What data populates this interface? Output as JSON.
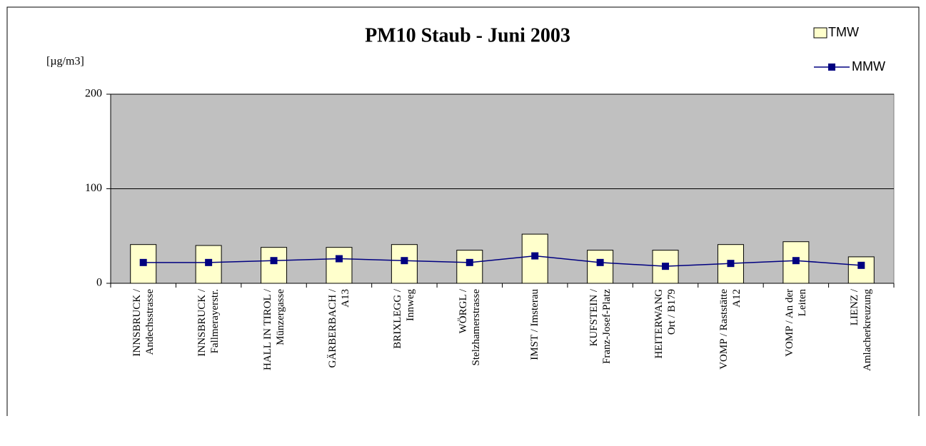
{
  "chart_data": {
    "type": "bar-line",
    "title": "PM10 Staub - Juni 2003",
    "y_label": "[µg/m3]",
    "categories": [
      "INNSBRUCK /\nAndechsstrasse",
      "INNSBRUCK /\nFallmerayerstr.",
      "HALL IN TIROL /\nMünzergasse",
      "GÄRBERBACH /\nA13",
      "BRIXLEGG /\nInnweg",
      "WÖRGL /\nStelzhamerstrasse",
      "IMST / Imsterau",
      "KUFSTEIN /\nFranz-Josef-Platz",
      "HEITERWANG\nOrt / B179",
      "VOMP / Raststätte\nA12",
      "VOMP / An der\nLeiten",
      "LIENZ /\nAmlacherkreuzung"
    ],
    "series": [
      {
        "name": "TMW",
        "type": "bar",
        "color": "#ffffcc",
        "values": [
          41,
          40,
          38,
          38,
          41,
          35,
          52,
          35,
          35,
          41,
          44,
          28
        ]
      },
      {
        "name": "MMW",
        "type": "line",
        "color": "#000080",
        "values": [
          22,
          22,
          24,
          26,
          24,
          22,
          29,
          22,
          18,
          21,
          24,
          19
        ]
      }
    ],
    "ylim": [
      0,
      200
    ],
    "yticks": [
      0,
      100,
      200
    ],
    "grid": true,
    "plot_background": "#c0c0c0"
  }
}
